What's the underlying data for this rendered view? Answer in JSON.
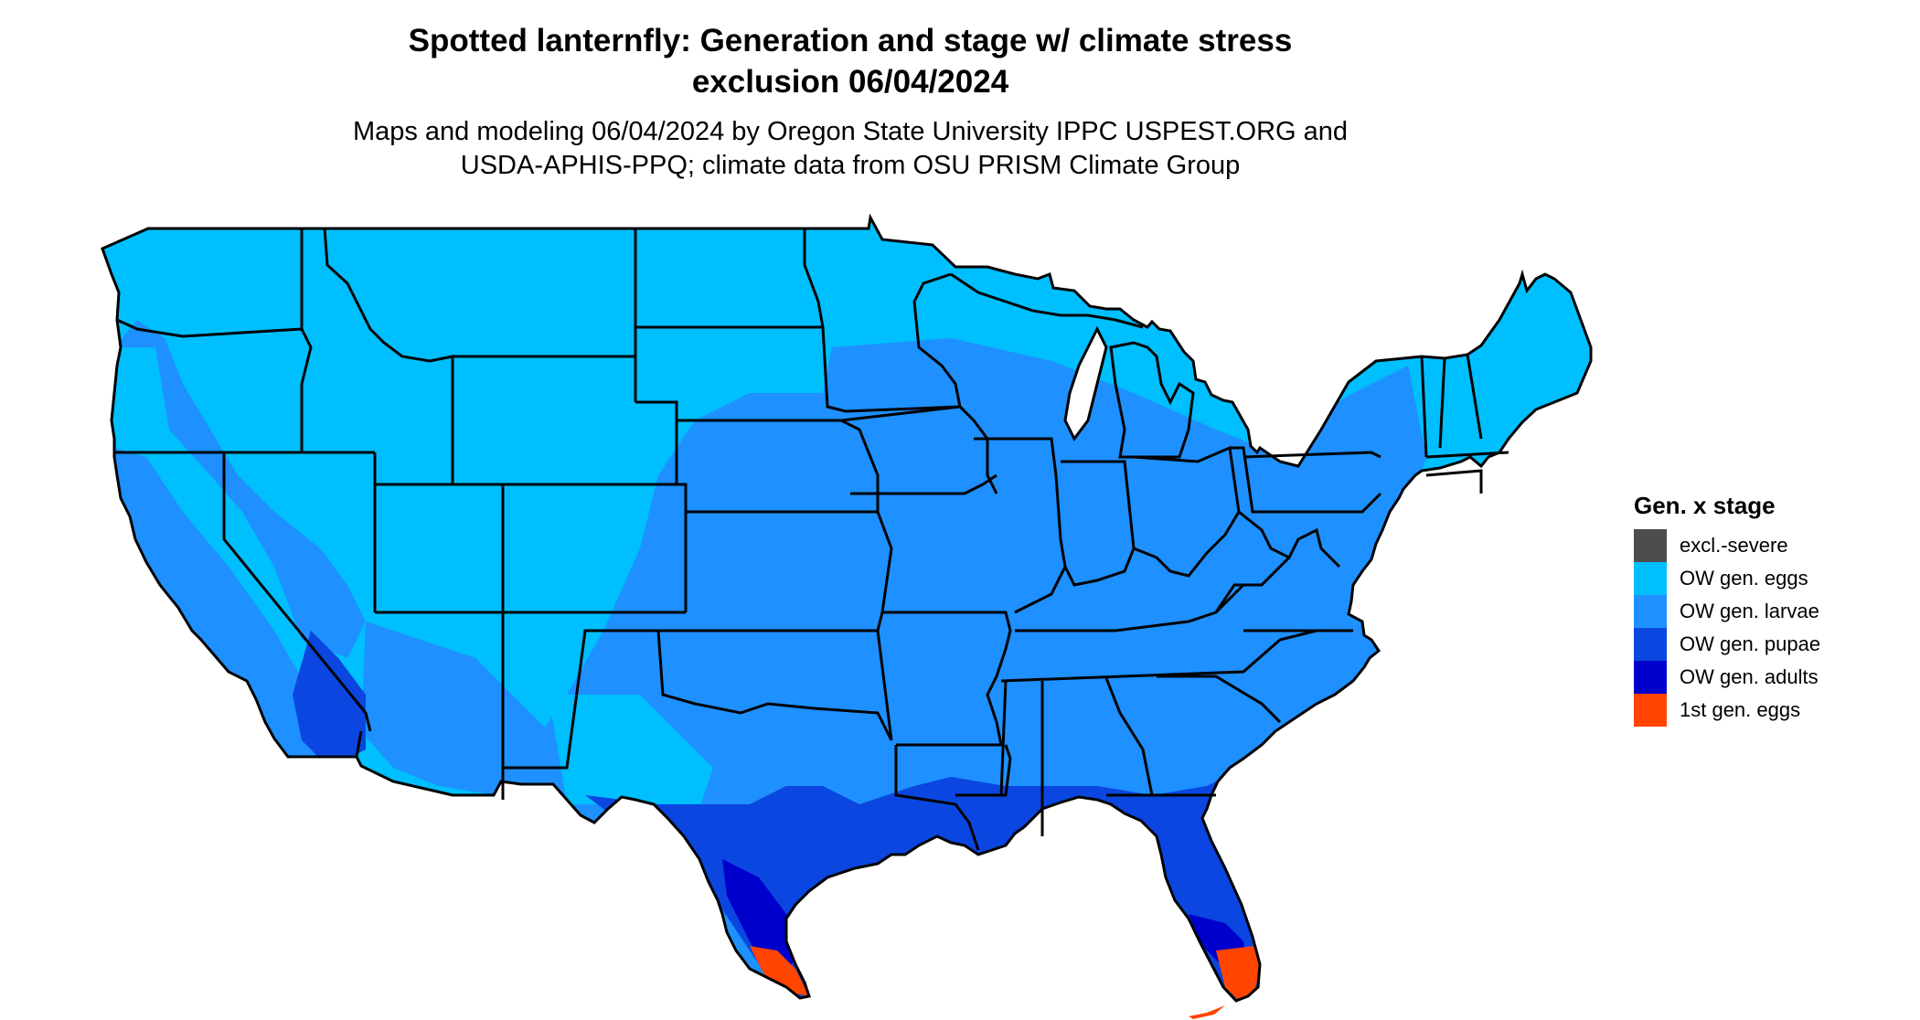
{
  "title_line1": "Spotted lanternfly: Generation and stage w/ climate stress",
  "title_line2": "exclusion 06/04/2024",
  "subtitle_line1": "Maps and modeling 06/04/2024 by Oregon State University IPPC USPEST.ORG and",
  "subtitle_line2": "USDA-APHIS-PPQ; climate data from OSU PRISM Climate Group",
  "legend": {
    "title": "Gen. x stage",
    "items": [
      {
        "label": "excl.-severe",
        "color": "#4d4d4d"
      },
      {
        "label": "OW gen. eggs",
        "color": "#00bfff"
      },
      {
        "label": "OW gen. larvae",
        "color": "#1e90ff"
      },
      {
        "label": "OW gen. pupae",
        "color": "#0b46e0"
      },
      {
        "label": "OW gen. adults",
        "color": "#0000cd"
      },
      {
        "label": "1st gen. eggs",
        "color": "#ff4500"
      }
    ]
  },
  "colors": {
    "eggs": "#00bfff",
    "larvae": "#1e90ff",
    "pupae": "#0b46e0",
    "adults": "#0000cd",
    "first_gen_eggs": "#ff4500",
    "borders": "#000000"
  }
}
